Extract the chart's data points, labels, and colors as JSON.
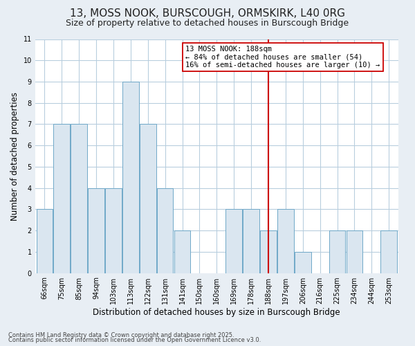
{
  "title": "13, MOSS NOOK, BURSCOUGH, ORMSKIRK, L40 0RG",
  "subtitle": "Size of property relative to detached houses in Burscough Bridge",
  "xlabel": "Distribution of detached houses by size in Burscough Bridge",
  "ylabel": "Number of detached properties",
  "categories": [
    "66sqm",
    "75sqm",
    "85sqm",
    "94sqm",
    "103sqm",
    "113sqm",
    "122sqm",
    "131sqm",
    "141sqm",
    "150sqm",
    "160sqm",
    "169sqm",
    "178sqm",
    "188sqm",
    "197sqm",
    "206sqm",
    "216sqm",
    "225sqm",
    "234sqm",
    "244sqm",
    "253sqm"
  ],
  "values": [
    3,
    7,
    7,
    4,
    4,
    9,
    7,
    4,
    2,
    0,
    0,
    3,
    3,
    2,
    3,
    1,
    0,
    2,
    2,
    0,
    2
  ],
  "bar_color": "#dae6f0",
  "bar_edge_color": "#6fa8c8",
  "highlight_line_index": 13,
  "highlight_line_color": "#cc0000",
  "annotation_text": "13 MOSS NOOK: 188sqm\n← 84% of detached houses are smaller (54)\n16% of semi-detached houses are larger (10) →",
  "annotation_box_color": "#ffffff",
  "annotation_box_edge_color": "#cc0000",
  "ylim": [
    0,
    11
  ],
  "yticks": [
    0,
    1,
    2,
    3,
    4,
    5,
    6,
    7,
    8,
    9,
    10,
    11
  ],
  "footer1": "Contains HM Land Registry data © Crown copyright and database right 2025.",
  "footer2": "Contains public sector information licensed under the Open Government Licence v3.0.",
  "fig_background_color": "#e8eef4",
  "plot_background_color": "#ffffff",
  "grid_color": "#b8cede",
  "title_fontsize": 11,
  "subtitle_fontsize": 9,
  "tick_fontsize": 7,
  "label_fontsize": 8.5,
  "annotation_fontsize": 7.5,
  "footer_fontsize": 6
}
